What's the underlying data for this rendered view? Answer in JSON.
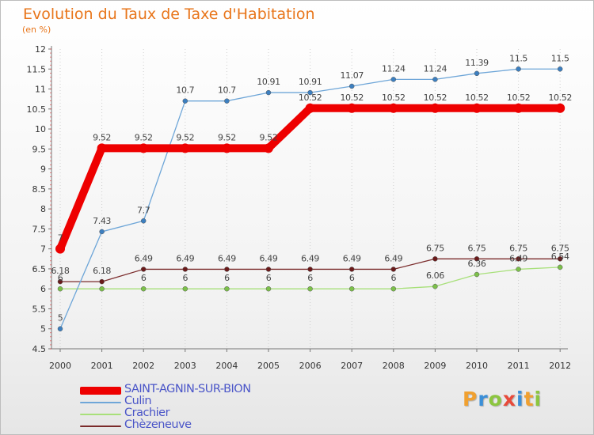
{
  "title": "Evolution du Taux de Taxe d'Habitation",
  "subtitle": "(en %)",
  "logo": {
    "text": "Proxiti",
    "letter_colors": [
      "#f0a030",
      "#3b8fd8",
      "#8cc63f",
      "#e84a3a",
      "#3b8fd8",
      "#f0a030",
      "#8cc63f"
    ]
  },
  "chart_data": {
    "type": "line",
    "x": [
      "2000",
      "2001",
      "2002",
      "2003",
      "2004",
      "2005",
      "2006",
      "2007",
      "2008",
      "2009",
      "2010",
      "2011",
      "2012"
    ],
    "ylim": [
      4.5,
      12
    ],
    "yticks": [
      "4.5",
      "5",
      "5.5",
      "6",
      "6.5",
      "7",
      "7.5",
      "8",
      "8.5",
      "9",
      "9.5",
      "10",
      "10.5",
      "11",
      "11.5",
      "12"
    ],
    "grid": "dotted vertical",
    "legend_position": "bottom-left",
    "series": [
      {
        "name": "SAINT-AGNIN-SUR-BION",
        "color": "#ee0000",
        "values": [
          7,
          9.52,
          9.52,
          9.52,
          9.52,
          9.52,
          10.52,
          10.52,
          10.52,
          10.52,
          10.52,
          10.52,
          10.52
        ],
        "labels": [
          "7",
          "9.52",
          "9.52",
          "9.52",
          "9.52",
          "9.52",
          "10.52",
          "10.52",
          "10.52",
          "10.52",
          "10.52",
          "10.52",
          "10.52"
        ]
      },
      {
        "name": "Culin",
        "color": "#6ea6d8",
        "values": [
          5,
          7.43,
          7.7,
          10.7,
          10.7,
          10.91,
          10.91,
          11.07,
          11.24,
          11.24,
          11.39,
          11.5,
          11.5
        ],
        "labels": [
          "5",
          "7.43",
          "7.7",
          "10.7",
          "10.7",
          "10.91",
          "10.91",
          "11.07",
          "11.24",
          "11.24",
          "11.39",
          "11.5",
          "11.5"
        ]
      },
      {
        "name": "Crachier",
        "color": "#a8e07a",
        "values": [
          6,
          6,
          6,
          6,
          6,
          6,
          6,
          6,
          6,
          6.06,
          6.36,
          6.49,
          6.54
        ],
        "labels": [
          "6",
          "",
          "6",
          "6",
          "6",
          "6",
          "6",
          "6",
          "6",
          "6.06",
          "6.36",
          "6.49",
          "6.54"
        ]
      },
      {
        "name": "Chèzeneuve",
        "color": "#7a2a2a",
        "values": [
          6.18,
          6.18,
          6.49,
          6.49,
          6.49,
          6.49,
          6.49,
          6.49,
          6.49,
          6.75,
          6.75,
          6.75,
          6.75
        ],
        "labels": [
          "6.18",
          "6.18",
          "6.49",
          "6.49",
          "6.49",
          "6.49",
          "6.49",
          "6.49",
          "6.49",
          "6.75",
          "6.75",
          "6.75",
          "6.75"
        ]
      }
    ]
  }
}
